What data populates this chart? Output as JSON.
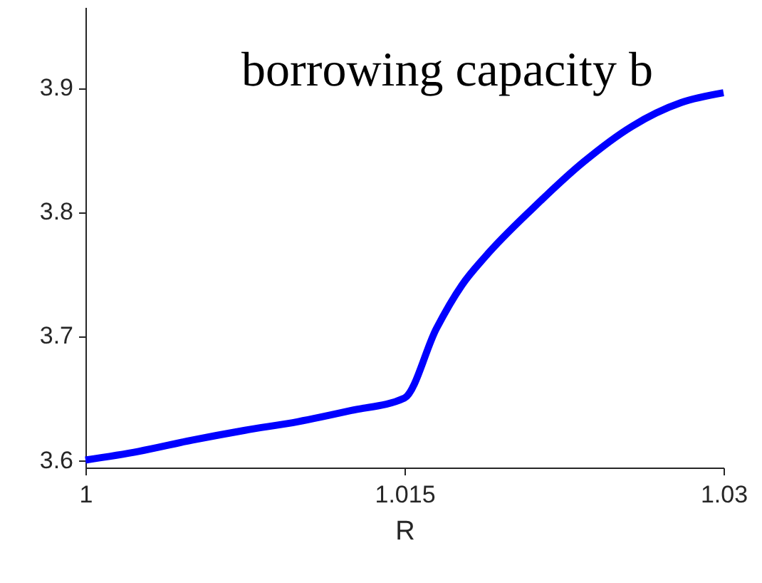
{
  "chart_data": {
    "type": "line",
    "title": "borrowing capacity b",
    "xlabel": "R",
    "x": [
      1,
      1.0025,
      1.005,
      1.0075,
      1.01,
      1.0125,
      1.015,
      1.0165,
      1.0177,
      1.0188,
      1.0211,
      1.0234,
      1.0257,
      1.028,
      1.03
    ],
    "series": [
      {
        "color": "#0000ff",
        "values": [
          3.6,
          3.607,
          3.616,
          3.624,
          3.631,
          3.64,
          3.65,
          3.706,
          3.741,
          3.764,
          3.804,
          3.84,
          3.869,
          3.888,
          3.896
        ]
      }
    ],
    "xlim": [
      1,
      1.03
    ],
    "xticks": [
      1,
      1.015,
      1.03
    ],
    "ylim": [
      3.594,
      3.965
    ],
    "yticks": [
      3.6,
      3.7,
      3.8,
      3.9
    ],
    "marker": "none",
    "line_style": "solid"
  }
}
